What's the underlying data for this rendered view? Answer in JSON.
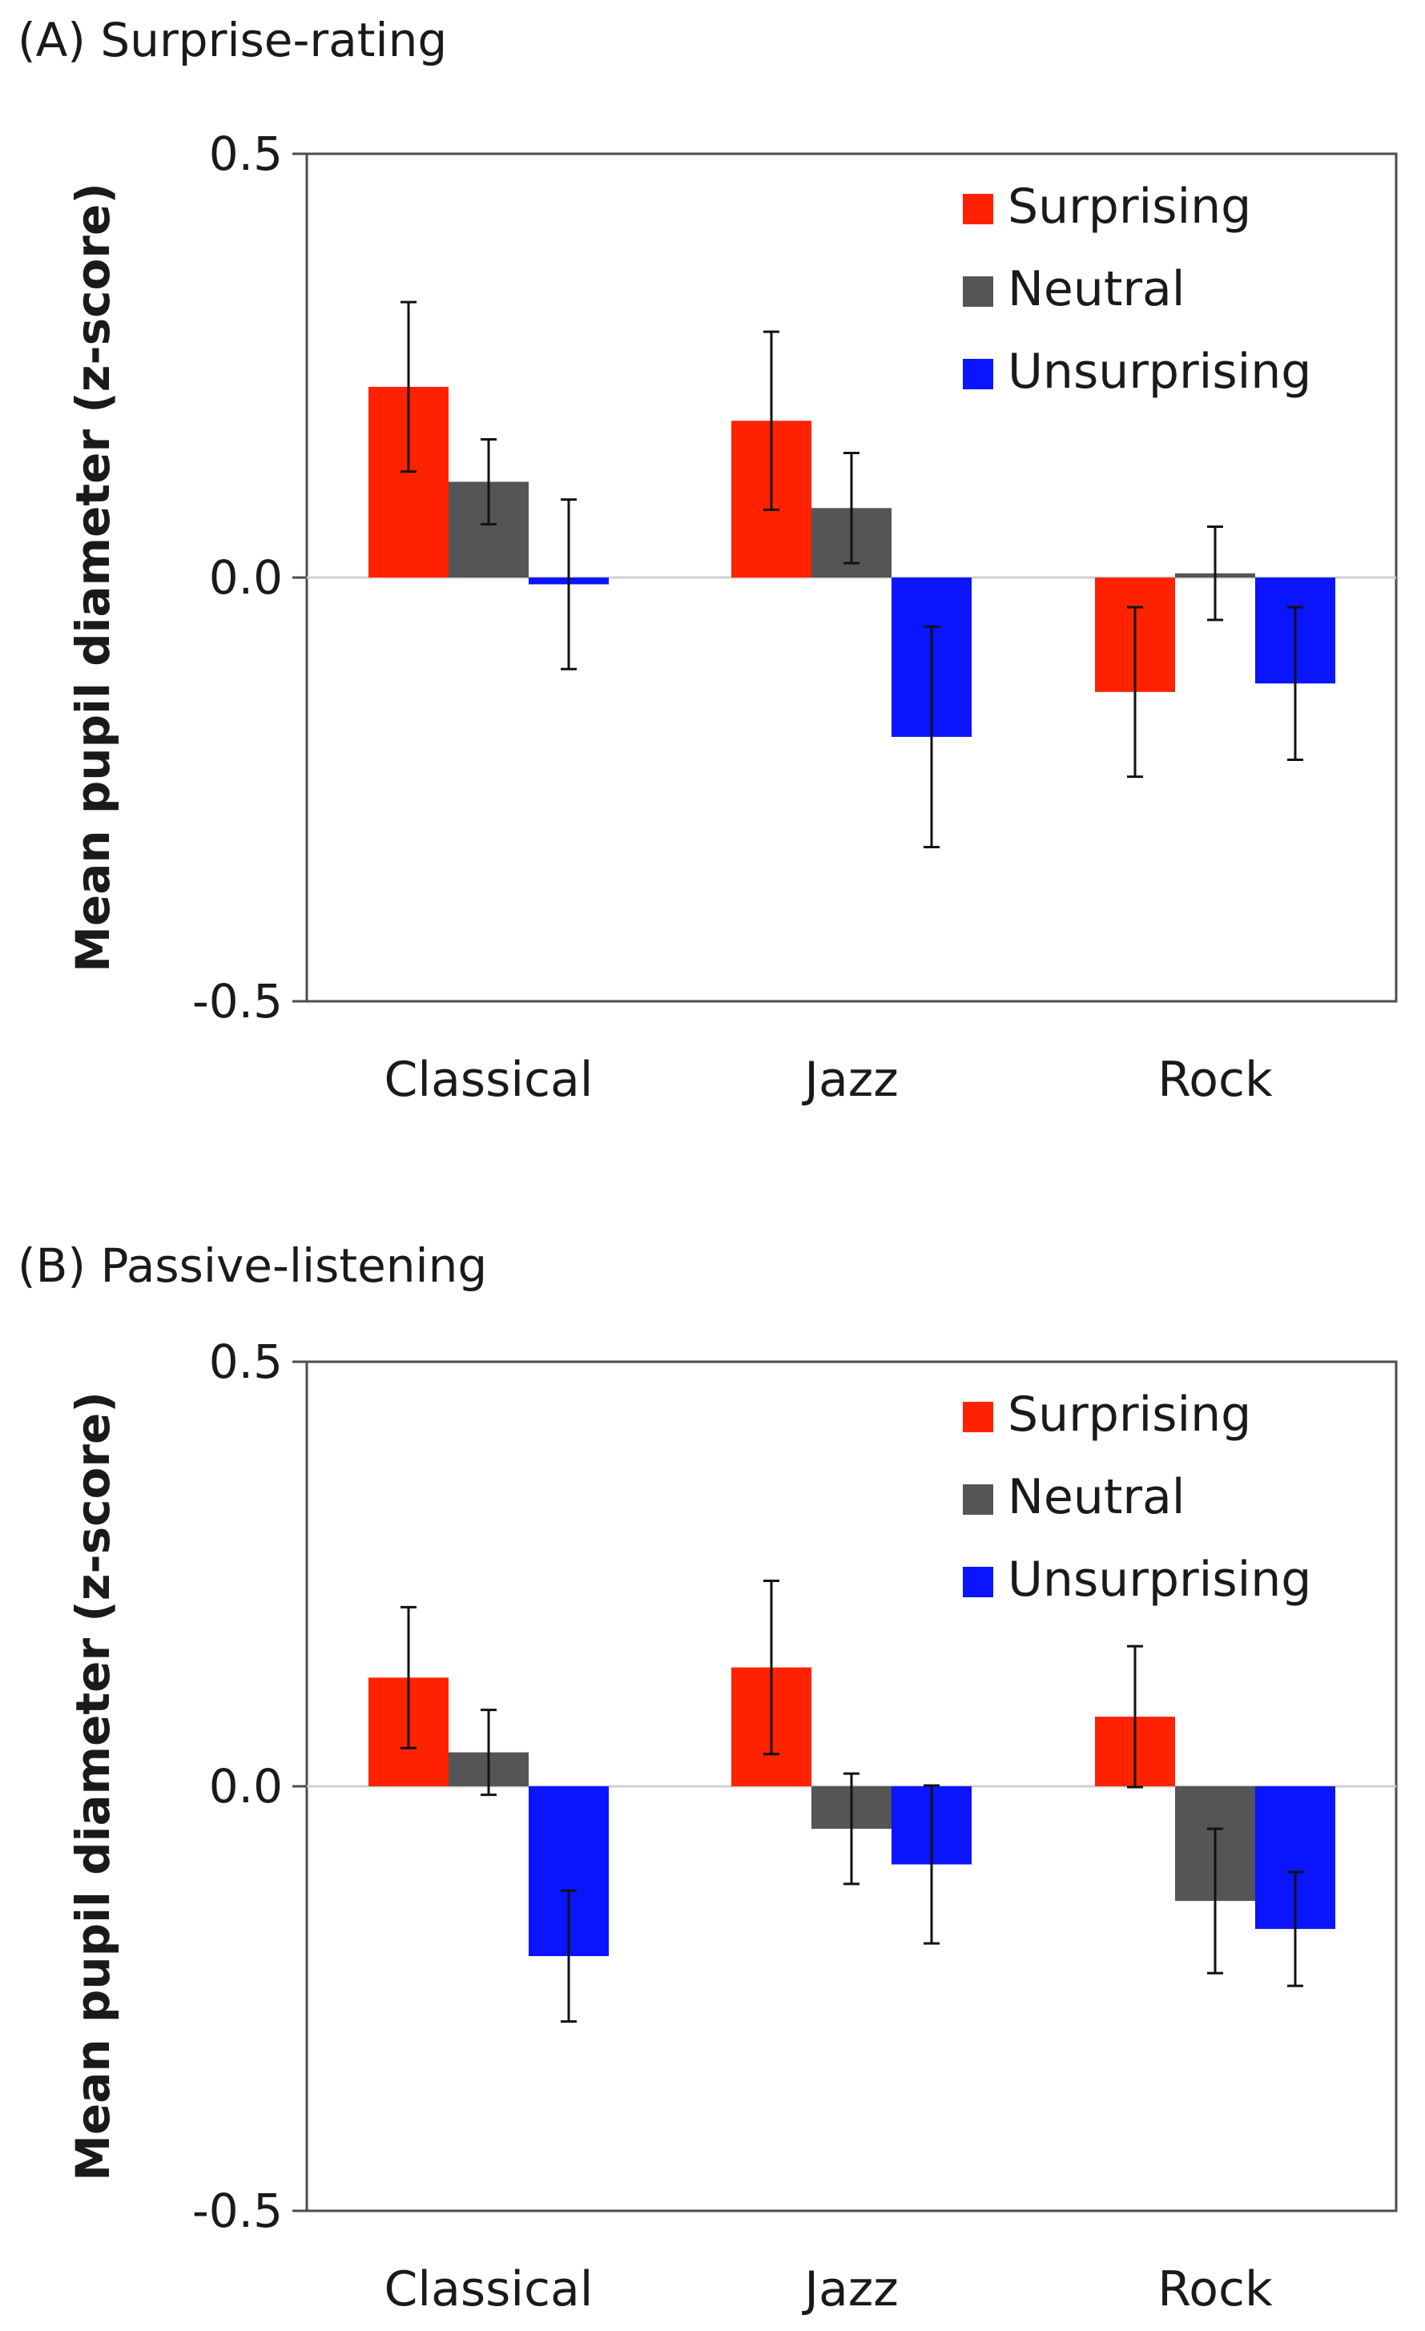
{
  "chart_data": [
    {
      "type": "bar",
      "title": "(A) Surprise-rating",
      "ylabel": "Mean pupil diameter (z-score)",
      "xlabel": "",
      "ylim": [
        -0.5,
        0.5
      ],
      "yticks": [
        0.5,
        0.0,
        -0.5
      ],
      "ytick_labels": [
        "0.5",
        "0.0",
        "-0.5"
      ],
      "categories": [
        "Classical",
        "Jazz",
        "Rock"
      ],
      "series": [
        {
          "name": "Surprising",
          "color": "#ff2200",
          "values": [
            0.225,
            0.185,
            -0.135
          ],
          "errors": [
            0.1,
            0.105,
            0.1
          ]
        },
        {
          "name": "Neutral",
          "color": "#555555",
          "values": [
            0.113,
            0.082,
            0.005
          ],
          "errors": [
            0.05,
            0.065,
            0.055
          ]
        },
        {
          "name": "Unsurprising",
          "color": "#0a14ff",
          "values": [
            -0.008,
            -0.188,
            -0.125
          ],
          "errors": [
            0.1,
            0.13,
            0.09
          ]
        }
      ],
      "legend": "top-right",
      "zero_line": true
    },
    {
      "type": "bar",
      "title": "(B) Passive-listening",
      "ylabel": "Mean pupil diameter (z-score)",
      "xlabel": "",
      "ylim": [
        -0.5,
        0.5
      ],
      "yticks": [
        0.5,
        0.0,
        -0.5
      ],
      "ytick_labels": [
        "0.5",
        "0.0",
        "-0.5"
      ],
      "categories": [
        "Classical",
        "Jazz",
        "Rock"
      ],
      "series": [
        {
          "name": "Surprising",
          "color": "#ff2200",
          "values": [
            0.128,
            0.14,
            0.082
          ],
          "errors": [
            0.083,
            0.102,
            0.083
          ]
        },
        {
          "name": "Neutral",
          "color": "#555555",
          "values": [
            0.04,
            -0.05,
            -0.135
          ],
          "errors": [
            0.05,
            0.065,
            0.085
          ]
        },
        {
          "name": "Unsurprising",
          "color": "#0a14ff",
          "values": [
            -0.2,
            -0.092,
            -0.168
          ],
          "errors": [
            0.077,
            0.093,
            0.067
          ]
        }
      ],
      "legend": "top-right",
      "zero_line": true
    }
  ]
}
